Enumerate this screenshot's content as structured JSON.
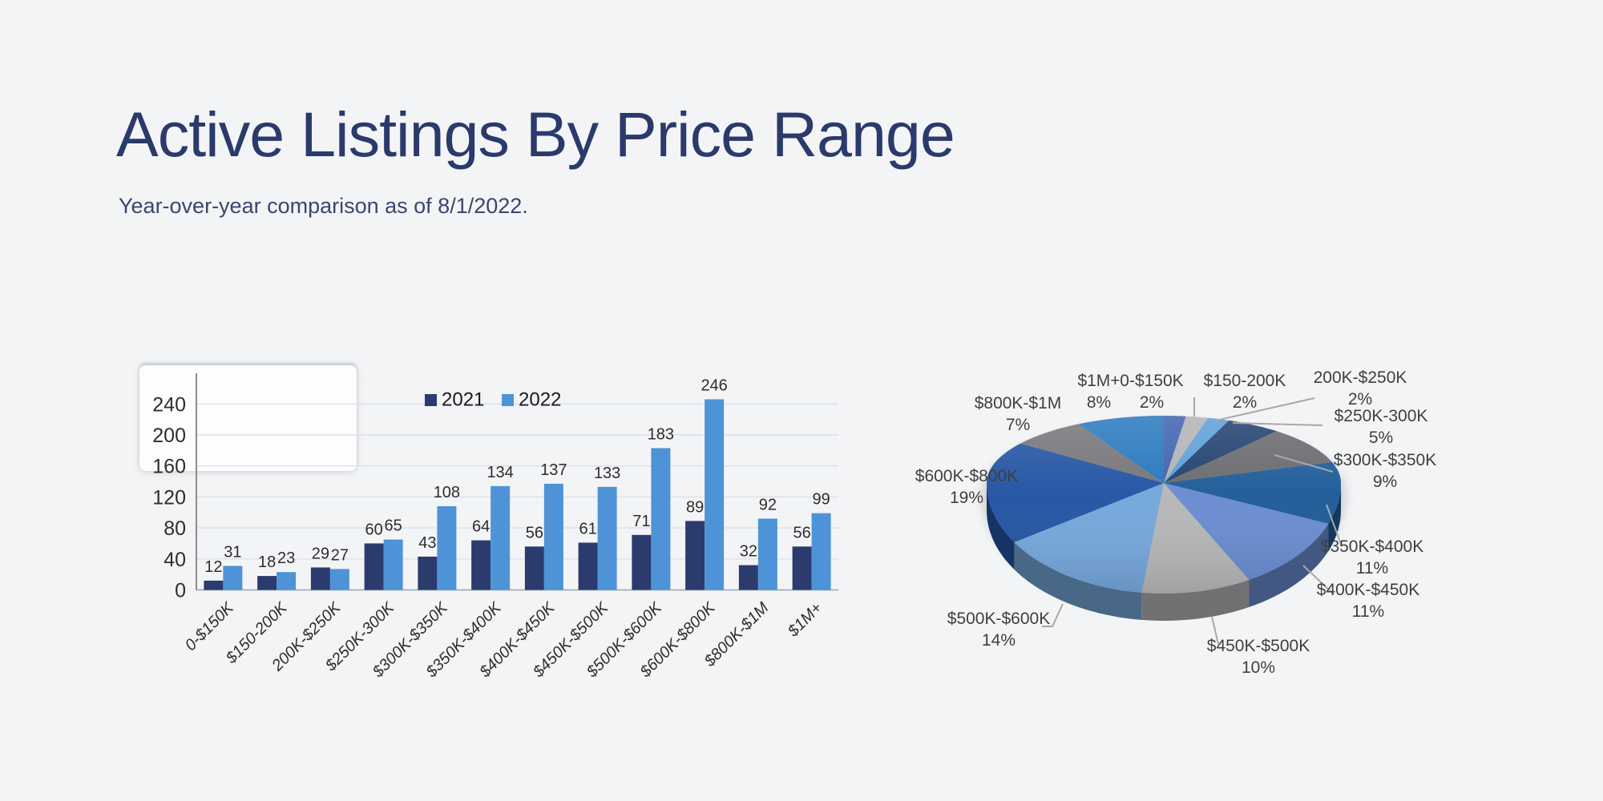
{
  "header": {
    "title": "Active Listings By Price Range",
    "subtitle": "Year-over-year comparison as of 8/1/2022."
  },
  "colors": {
    "background": "#f3f4f5",
    "title_text": "#2b3a6c",
    "series_2021": "#2b3b6e",
    "series_2022": "#4e93d7",
    "gridline": "#dbdfec",
    "axis_line": "#8c8c8c",
    "baseline": "#9aa3b2",
    "label_text": "#2e2e2e",
    "pie_label_text": "#3f3f3f",
    "leader_line": "#a8a8a8"
  },
  "chart_data": [
    {
      "type": "bar",
      "title": "",
      "xlabel": "",
      "ylabel": "",
      "categories": [
        "0-$150K",
        "$150-200K",
        "200K-$250K",
        "$250K-300K",
        "$300K-$350K",
        "$350K-$400K",
        "$400K-$450K",
        "$450K-$500K",
        "$500K-$600K",
        "$600K-$800K",
        "$800K-$1M",
        "$1M+"
      ],
      "series": [
        {
          "name": "2021",
          "color": "#2b3b6e",
          "values": [
            12,
            18,
            29,
            60,
            43,
            64,
            56,
            61,
            71,
            89,
            32,
            56
          ]
        },
        {
          "name": "2022",
          "color": "#4e93d7",
          "values": [
            31,
            23,
            27,
            65,
            108,
            134,
            137,
            133,
            183,
            246,
            92,
            99
          ]
        }
      ],
      "ylim": [
        0,
        280
      ],
      "yticks": [
        0,
        40,
        80,
        120,
        160,
        200,
        240
      ],
      "grid": true,
      "legend_position": "top-center",
      "value_labels": "outside-end"
    },
    {
      "type": "pie",
      "style": "3d",
      "start_angle_deg": 0,
      "direction": "clockwise",
      "unit": "%",
      "categories": [
        "0-$150K",
        "$150-200K",
        "200K-$250K",
        "$250K-300K",
        "$300K-$350K",
        "$350K-$400K",
        "$400K-$450K",
        "$450K-$500K",
        "$500K-$600K",
        "$600K-$800K",
        "$800K-$1M",
        "$1M+"
      ],
      "values": [
        2,
        2,
        2,
        5,
        9,
        11,
        11,
        10,
        14,
        19,
        7,
        8
      ],
      "colors": [
        "#3f63b0",
        "#b3b3b6",
        "#5c9fd9",
        "#21406f",
        "#696a6e",
        "#1f5c99",
        "#6a8cd1",
        "#b6b7b9",
        "#75a7dc",
        "#2454a3",
        "#76767a",
        "#2878be"
      ],
      "labels": "category-and-percent"
    }
  ]
}
